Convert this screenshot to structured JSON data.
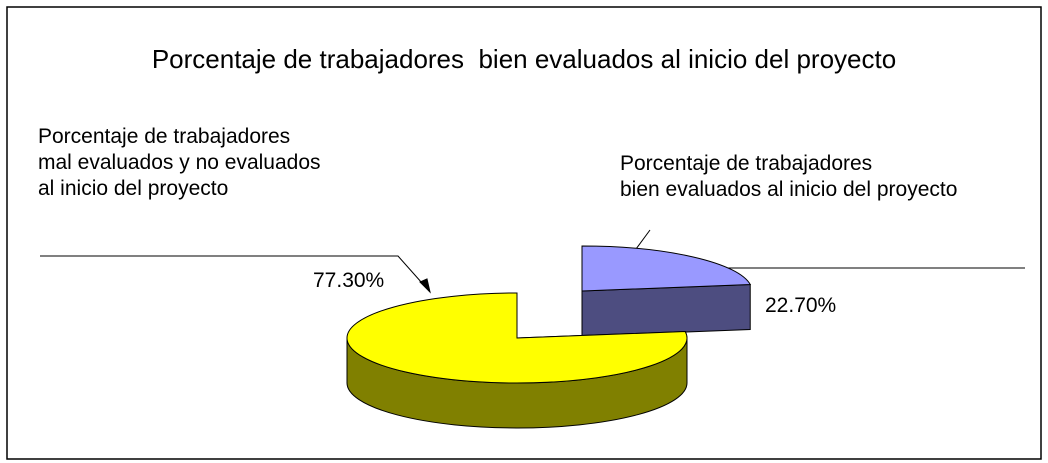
{
  "chart_data": {
    "type": "pie",
    "title": "Porcentaje de trabajadores  bien evaluados al inicio del proyecto",
    "categories": [
      "Porcentaje de trabajadores mal evaluados y no evaluados al inicio del proyecto",
      "Porcentaje de trabajadores bien evaluados al inicio del proyecto"
    ],
    "values": [
      77.3,
      22.7
    ],
    "value_labels": [
      "77.30%",
      "22.70%"
    ],
    "colors": [
      "#ffff00",
      "#9999ff"
    ]
  }
}
